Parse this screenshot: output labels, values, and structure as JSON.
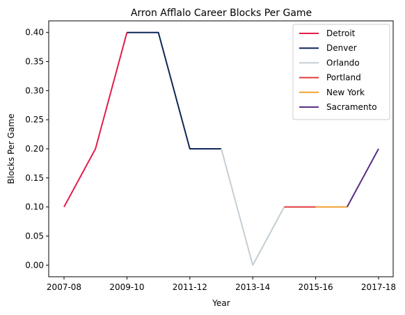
{
  "chart_data": {
    "type": "line",
    "title": "Arron Afflalo Career Blocks Per Game",
    "xlabel": "Year",
    "ylabel": "Blocks Per Game",
    "x": [
      "2007-08",
      "2008-09",
      "2009-10",
      "2010-11",
      "2011-12",
      "2012-13",
      "2013-14",
      "2014-15",
      "2015-16",
      "2016-17",
      "2017-18"
    ],
    "x_tick_labels": [
      "2007-08",
      "2009-10",
      "2011-12",
      "2013-14",
      "2015-16",
      "2017-18"
    ],
    "ylim": [
      -0.02,
      0.42
    ],
    "y_ticks": [
      "0.00",
      "0.05",
      "0.10",
      "0.15",
      "0.20",
      "0.25",
      "0.30",
      "0.35",
      "0.40"
    ],
    "grid": false,
    "legend_position": "top-right",
    "series": [
      {
        "name": "Detroit",
        "color": "#e31c4a",
        "x": [
          "2007-08",
          "2008-09",
          "2009-10"
        ],
        "values": [
          0.1,
          0.2,
          0.4
        ]
      },
      {
        "name": "Denver",
        "color": "#0d2656",
        "x": [
          "2009-10",
          "2010-11",
          "2011-12",
          "2012-13"
        ],
        "values": [
          0.4,
          0.4,
          0.2,
          0.2
        ]
      },
      {
        "name": "Orlando",
        "color": "#c4ced4",
        "x": [
          "2012-13",
          "2013-14",
          "2014-15"
        ],
        "values": [
          0.2,
          0.0,
          0.1
        ]
      },
      {
        "name": "Portland",
        "color": "#e03a3e",
        "x": [
          "2014-15",
          "2015-16"
        ],
        "values": [
          0.1,
          0.1
        ]
      },
      {
        "name": "New York",
        "color": "#f5a031",
        "x": [
          "2015-16",
          "2016-17"
        ],
        "values": [
          0.1,
          0.1
        ]
      },
      {
        "name": "Sacramento",
        "color": "#5a2d81",
        "x": [
          "2016-17",
          "2017-18"
        ],
        "values": [
          0.1,
          0.2
        ]
      }
    ]
  }
}
